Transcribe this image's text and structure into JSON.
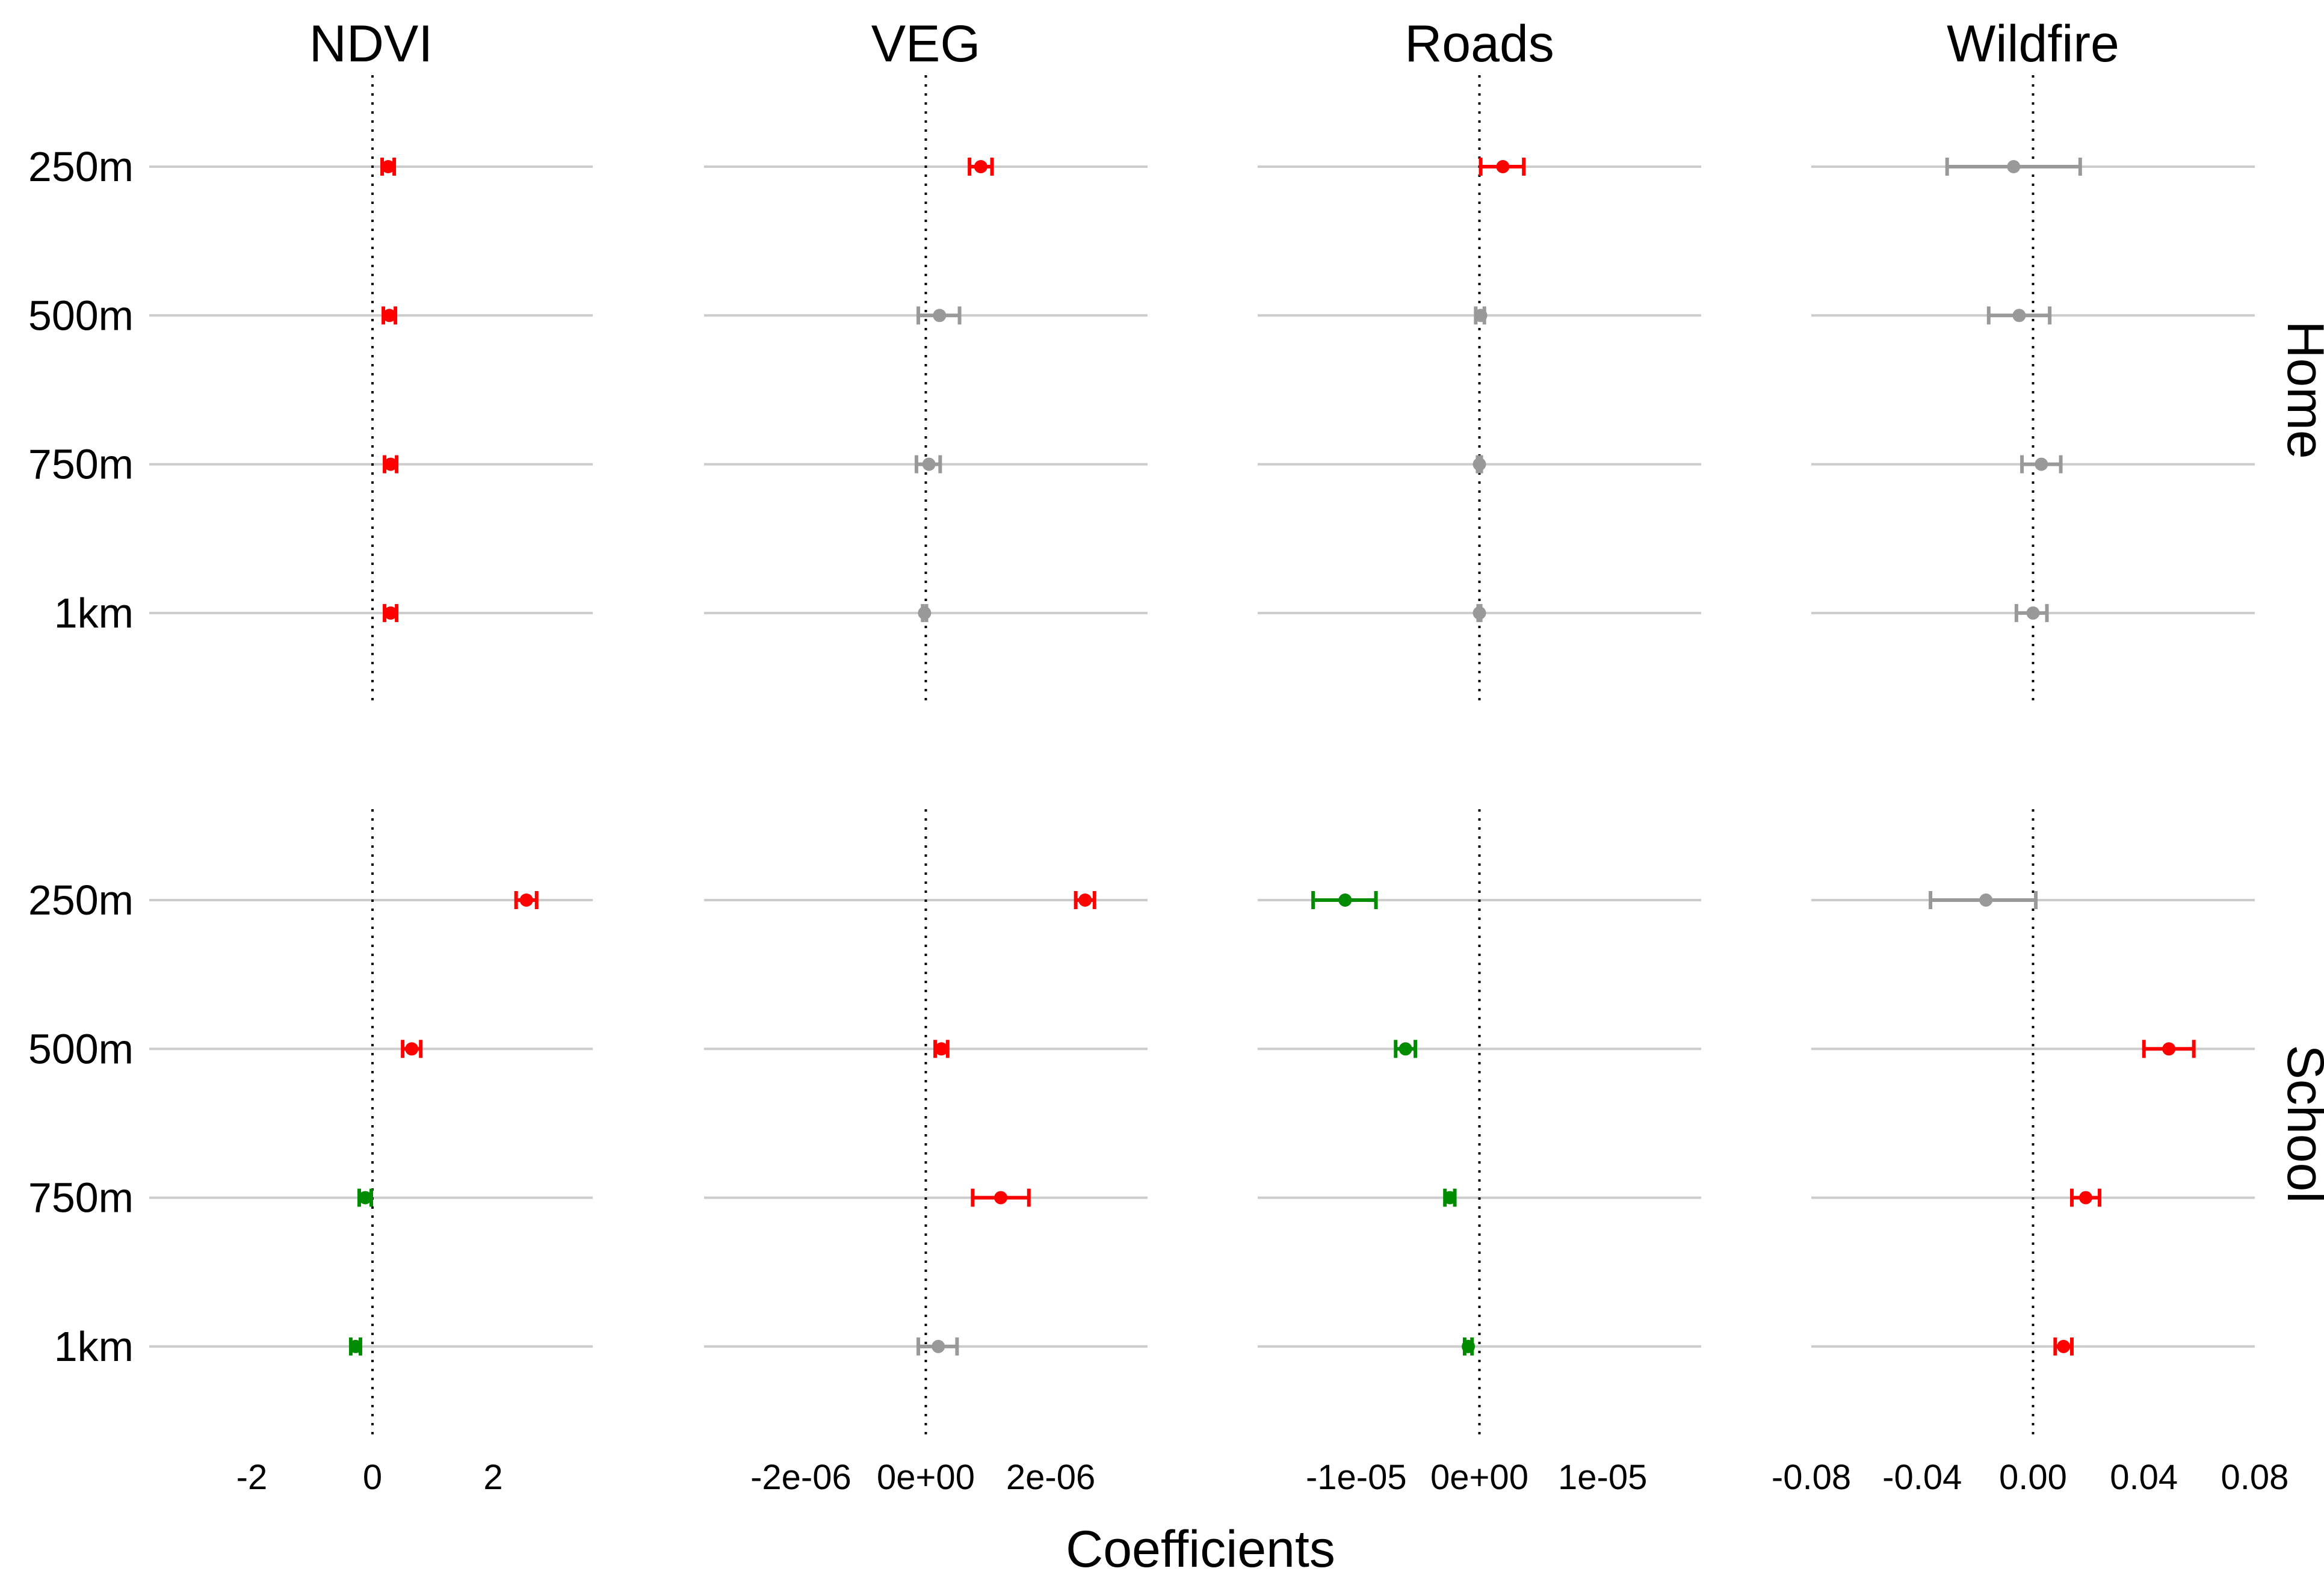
{
  "chart_data": {
    "type": "errorbar",
    "xlabel": "Coefficients",
    "row_strips": [
      "Home",
      "School"
    ],
    "row_labels": [
      "250m",
      "500m",
      "750m",
      "1km"
    ],
    "colors": {
      "positive": "#ff0000",
      "negative": "#008b00",
      "nonsignificant": "#999999"
    },
    "columns": [
      {
        "title": "NDVI",
        "xlim": [
          -3.7,
          3.65
        ],
        "ticks": [
          -2,
          0,
          2
        ],
        "tick_labels": [
          "-2",
          "0",
          "2"
        ],
        "Home": [
          {
            "label": "250m",
            "estimate": 0.26,
            "low": 0.16,
            "high": 0.36,
            "color": "positive"
          },
          {
            "label": "500m",
            "estimate": 0.28,
            "low": 0.18,
            "high": 0.38,
            "color": "positive"
          },
          {
            "label": "750m",
            "estimate": 0.3,
            "low": 0.2,
            "high": 0.4,
            "color": "positive"
          },
          {
            "label": "1km",
            "estimate": 0.3,
            "low": 0.2,
            "high": 0.4,
            "color": "positive"
          }
        ],
        "School": [
          {
            "label": "250m",
            "estimate": 2.55,
            "low": 2.38,
            "high": 2.72,
            "color": "positive"
          },
          {
            "label": "500m",
            "estimate": 0.65,
            "low": 0.5,
            "high": 0.8,
            "color": "positive"
          },
          {
            "label": "750m",
            "estimate": -0.12,
            "low": -0.22,
            "high": -0.02,
            "color": "negative"
          },
          {
            "label": "1km",
            "estimate": -0.28,
            "low": -0.36,
            "high": -0.2,
            "color": "negative"
          }
        ]
      },
      {
        "title": "VEG",
        "xlim": [
          -3.55e-06,
          3.55e-06
        ],
        "ticks": [
          -2e-06,
          0,
          2e-06
        ],
        "tick_labels": [
          "-2e-06",
          "0e+00",
          "2e-06"
        ],
        "Home": [
          {
            "label": "250m",
            "estimate": 8.8e-07,
            "low": 7e-07,
            "high": 1.06e-06,
            "color": "positive"
          },
          {
            "label": "500m",
            "estimate": 2.2e-07,
            "low": -1.2e-07,
            "high": 5.4e-07,
            "color": "nonsignificant"
          },
          {
            "label": "750m",
            "estimate": 5e-08,
            "low": -1.5e-07,
            "high": 2.3e-07,
            "color": "nonsignificant"
          },
          {
            "label": "1km",
            "estimate": -2e-08,
            "low": -5e-08,
            "high": 1e-08,
            "color": "nonsignificant"
          }
        ],
        "School": [
          {
            "label": "250m",
            "estimate": 2.55e-06,
            "low": 2.4e-06,
            "high": 2.7e-06,
            "color": "positive"
          },
          {
            "label": "500m",
            "estimate": 2.5e-07,
            "low": 1.5e-07,
            "high": 3.5e-07,
            "color": "positive"
          },
          {
            "label": "750m",
            "estimate": 1.2e-06,
            "low": 7.5e-07,
            "high": 1.65e-06,
            "color": "positive"
          },
          {
            "label": "1km",
            "estimate": 2e-07,
            "low": -1.2e-07,
            "high": 5e-07,
            "color": "nonsignificant"
          }
        ]
      },
      {
        "title": "Roads",
        "xlim": [
          -1.8e-05,
          1.8e-05
        ],
        "ticks": [
          -1e-05,
          0,
          1e-05
        ],
        "tick_labels": [
          "-1e-05",
          "0e+00",
          "1e-05"
        ],
        "Home": [
          {
            "label": "250m",
            "estimate": 1.9e-06,
            "low": 1e-07,
            "high": 3.6e-06,
            "color": "positive"
          },
          {
            "label": "500m",
            "estimate": 1e-07,
            "low": -3e-07,
            "high": 4e-07,
            "color": "nonsignificant"
          },
          {
            "label": "750m",
            "estimate": 0.0,
            "low": -1.5e-07,
            "high": 1.5e-07,
            "color": "nonsignificant"
          },
          {
            "label": "1km",
            "estimate": 0.0,
            "low": -1e-07,
            "high": 1e-07,
            "color": "nonsignificant"
          }
        ],
        "School": [
          {
            "label": "250m",
            "estimate": -1.09e-05,
            "low": -1.35e-05,
            "high": -8.4e-06,
            "color": "negative"
          },
          {
            "label": "500m",
            "estimate": -6e-06,
            "low": -6.8e-06,
            "high": -5.2e-06,
            "color": "negative"
          },
          {
            "label": "750m",
            "estimate": -2.4e-06,
            "low": -2.8e-06,
            "high": -2e-06,
            "color": "negative"
          },
          {
            "label": "1km",
            "estimate": -9e-07,
            "low": -1.2e-06,
            "high": -6e-07,
            "color": "negative"
          }
        ]
      },
      {
        "title": "Wildfire",
        "xlim": [
          -0.08,
          0.08
        ],
        "ticks": [
          -0.08,
          -0.04,
          0,
          0.04,
          0.08
        ],
        "tick_labels": [
          "-0.08",
          "-0.04",
          "0.00",
          "0.04",
          "0.08"
        ],
        "Home": [
          {
            "label": "250m",
            "estimate": -0.007,
            "low": -0.031,
            "high": 0.017,
            "color": "nonsignificant"
          },
          {
            "label": "500m",
            "estimate": -0.005,
            "low": -0.016,
            "high": 0.006,
            "color": "nonsignificant"
          },
          {
            "label": "750m",
            "estimate": 0.003,
            "low": -0.004,
            "high": 0.01,
            "color": "nonsignificant"
          },
          {
            "label": "1km",
            "estimate": 0.0,
            "low": -0.006,
            "high": 0.005,
            "color": "nonsignificant"
          }
        ],
        "School": [
          {
            "label": "250m",
            "estimate": -0.017,
            "low": -0.037,
            "high": 0.001,
            "color": "nonsignificant"
          },
          {
            "label": "500m",
            "estimate": 0.049,
            "low": 0.04,
            "high": 0.058,
            "color": "positive"
          },
          {
            "label": "750m",
            "estimate": 0.019,
            "low": 0.014,
            "high": 0.024,
            "color": "positive"
          },
          {
            "label": "1km",
            "estimate": 0.011,
            "low": 0.008,
            "high": 0.014,
            "color": "positive"
          }
        ]
      }
    ]
  }
}
